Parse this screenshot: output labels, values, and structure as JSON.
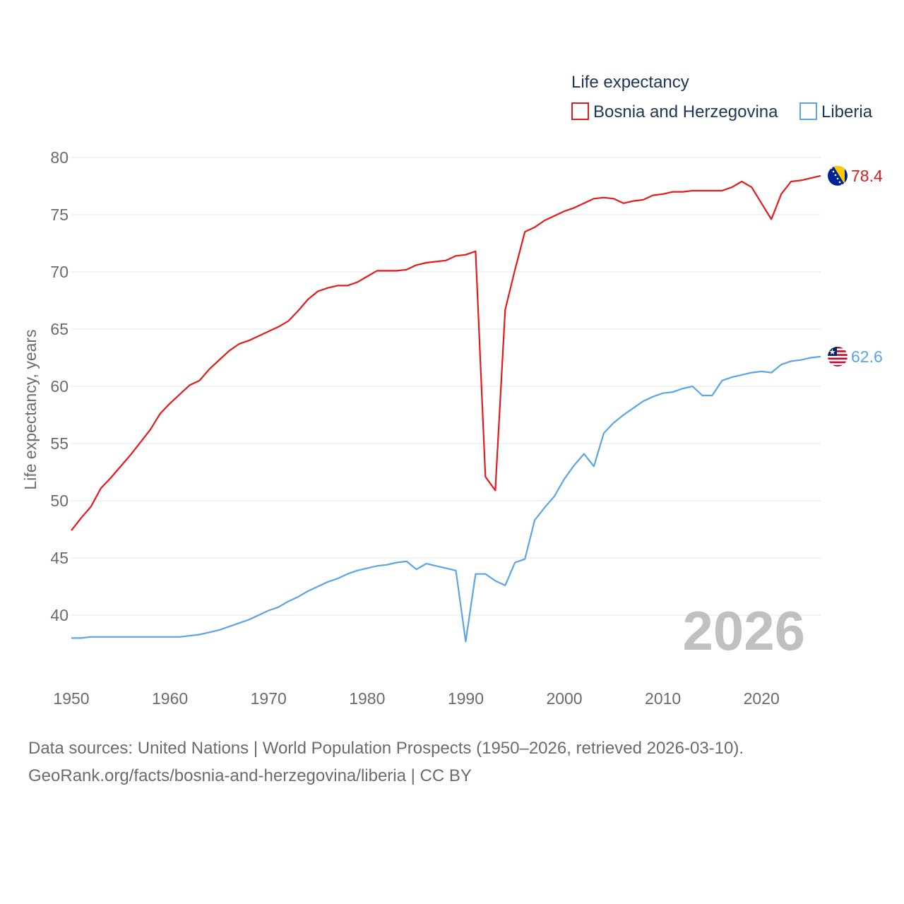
{
  "chart_data": {
    "type": "line",
    "legend_title": "Life expectancy",
    "ylabel": "Life expectancy, years",
    "xlabel": "",
    "xlim": [
      1950,
      2026
    ],
    "ylim": [
      34,
      81
    ],
    "x_ticks": [
      1950,
      1960,
      1970,
      1980,
      1990,
      2000,
      2010,
      2020
    ],
    "y_ticks": [
      40,
      45,
      50,
      55,
      60,
      65,
      70,
      75,
      80
    ],
    "year_label": "2026",
    "legend_position": "top-right",
    "x": [
      1950,
      1951,
      1952,
      1953,
      1954,
      1955,
      1956,
      1957,
      1958,
      1959,
      1960,
      1961,
      1962,
      1963,
      1964,
      1965,
      1966,
      1967,
      1968,
      1969,
      1970,
      1971,
      1972,
      1973,
      1974,
      1975,
      1976,
      1977,
      1978,
      1979,
      1980,
      1981,
      1982,
      1983,
      1984,
      1985,
      1986,
      1987,
      1988,
      1989,
      1990,
      1991,
      1992,
      1993,
      1994,
      1995,
      1996,
      1997,
      1998,
      1999,
      2000,
      2001,
      2002,
      2003,
      2004,
      2005,
      2006,
      2007,
      2008,
      2009,
      2010,
      2011,
      2012,
      2013,
      2014,
      2015,
      2016,
      2017,
      2018,
      2019,
      2020,
      2021,
      2022,
      2023,
      2024,
      2025,
      2026
    ],
    "series": [
      {
        "name": "Bosnia and Herzegovina",
        "color": "#e41a1c",
        "end_label": "78.4",
        "flag": "bosnia-flag-icon",
        "values": [
          47.4,
          48.5,
          49.5,
          51.1,
          52.0,
          53.0,
          54.0,
          55.1,
          56.2,
          57.6,
          58.5,
          59.3,
          60.1,
          60.5,
          61.5,
          62.3,
          63.1,
          63.7,
          64.0,
          64.4,
          64.8,
          65.2,
          65.7,
          66.6,
          67.6,
          68.3,
          68.6,
          68.8,
          68.8,
          69.1,
          69.6,
          70.1,
          70.1,
          70.1,
          70.2,
          70.6,
          70.8,
          70.9,
          71.0,
          71.4,
          71.5,
          71.8,
          52.1,
          50.9,
          66.7,
          70.2,
          73.5,
          73.9,
          74.5,
          74.9,
          75.3,
          75.6,
          76.0,
          76.4,
          76.5,
          76.4,
          76.0,
          76.2,
          76.3,
          76.7,
          76.8,
          77.0,
          77.0,
          77.1,
          77.1,
          77.1,
          77.1,
          77.4,
          77.9,
          77.4,
          76.0,
          74.6,
          76.8,
          77.9,
          78.0,
          78.2,
          78.4
        ]
      },
      {
        "name": "Liberia",
        "color": "#5ba4e6",
        "end_label": "62.6",
        "flag": "liberia-flag-icon",
        "values": [
          38.0,
          38.0,
          38.1,
          38.1,
          38.1,
          38.1,
          38.1,
          38.1,
          38.1,
          38.1,
          38.1,
          38.1,
          38.2,
          38.3,
          38.5,
          38.7,
          39.0,
          39.3,
          39.6,
          40.0,
          40.4,
          40.7,
          41.2,
          41.6,
          42.1,
          42.5,
          42.9,
          43.2,
          43.6,
          43.9,
          44.1,
          44.3,
          44.4,
          44.6,
          44.7,
          44.0,
          44.5,
          44.3,
          44.1,
          43.9,
          37.7,
          43.6,
          43.6,
          43.0,
          42.6,
          44.6,
          44.9,
          48.3,
          49.4,
          50.4,
          51.9,
          53.1,
          54.1,
          53.0,
          55.9,
          56.8,
          57.5,
          58.1,
          58.7,
          59.1,
          59.4,
          59.5,
          59.8,
          60.0,
          59.2,
          59.2,
          60.5,
          60.8,
          61.0,
          61.2,
          61.3,
          61.2,
          61.9,
          62.2,
          62.3,
          62.5,
          62.6
        ]
      }
    ]
  },
  "footer": {
    "source_line": "Data sources: United Nations | World Population Prospects (1950–2026, retrieved 2026-03-10).",
    "attribution_line": "GeoRank.org/facts/bosnia-and-herzegovina/liberia | CC BY"
  }
}
